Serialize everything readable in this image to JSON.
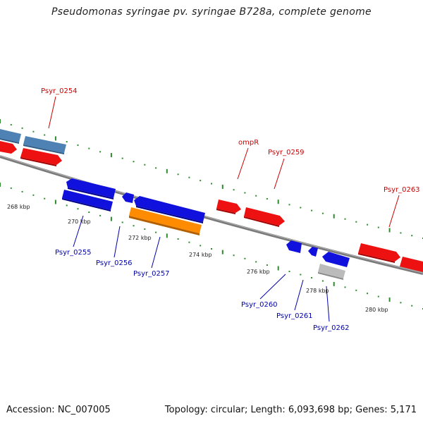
{
  "header": {
    "title": "Pseudomonas syringae pv. syringae B728a, complete genome"
  },
  "footer": {
    "accession": "Accession: NC_007005",
    "summary": "Topology: circular; Length: 6,093,698 bp; Genes: 5,171"
  },
  "colors": {
    "backbone": "#7a7a7a",
    "tick_green": "#2e8b2e",
    "label_top": "#cc0000",
    "label_bottom": "#0000aa",
    "gene_red": "#ee1111",
    "gene_blue": "#1111dd",
    "gene_steelblue": "#4f82b4",
    "gene_orange": "#ff8c00",
    "gene_grey": "#bbbbbb"
  },
  "scale_labels": [
    "268 kbp",
    "270 kbp",
    "272 kbp",
    "274 kbp",
    "276 kbp",
    "278 kbp",
    "280 kbp"
  ],
  "genes_top_strand": [
    {
      "label": "Psyr_0254",
      "color": "gene_steelblue"
    },
    {
      "label": "",
      "color": "gene_steelblue"
    },
    {
      "label": "",
      "color": "gene_red"
    },
    {
      "label": "",
      "color": "gene_red"
    },
    {
      "label": "ompR",
      "color": "gene_red"
    },
    {
      "label": "Psyr_0259",
      "color": "gene_red"
    },
    {
      "label": "Psyr_0263",
      "color": "gene_red"
    },
    {
      "label": "",
      "color": "gene_red"
    }
  ],
  "genes_bottom_strand": [
    {
      "label": "",
      "color": "gene_blue"
    },
    {
      "label": "Psyr_0255",
      "color": "gene_blue"
    },
    {
      "label": "Psyr_0256",
      "color": "gene_blue"
    },
    {
      "label": "",
      "color": "gene_blue"
    },
    {
      "label": "Psyr_0257",
      "color": "gene_orange"
    },
    {
      "label": "Psyr_0260",
      "color": "gene_blue"
    },
    {
      "label": "Psyr_0261",
      "color": "gene_blue"
    },
    {
      "label": "Psyr_0262",
      "color": "gene_grey"
    },
    {
      "label": "",
      "color": "gene_blue"
    }
  ]
}
